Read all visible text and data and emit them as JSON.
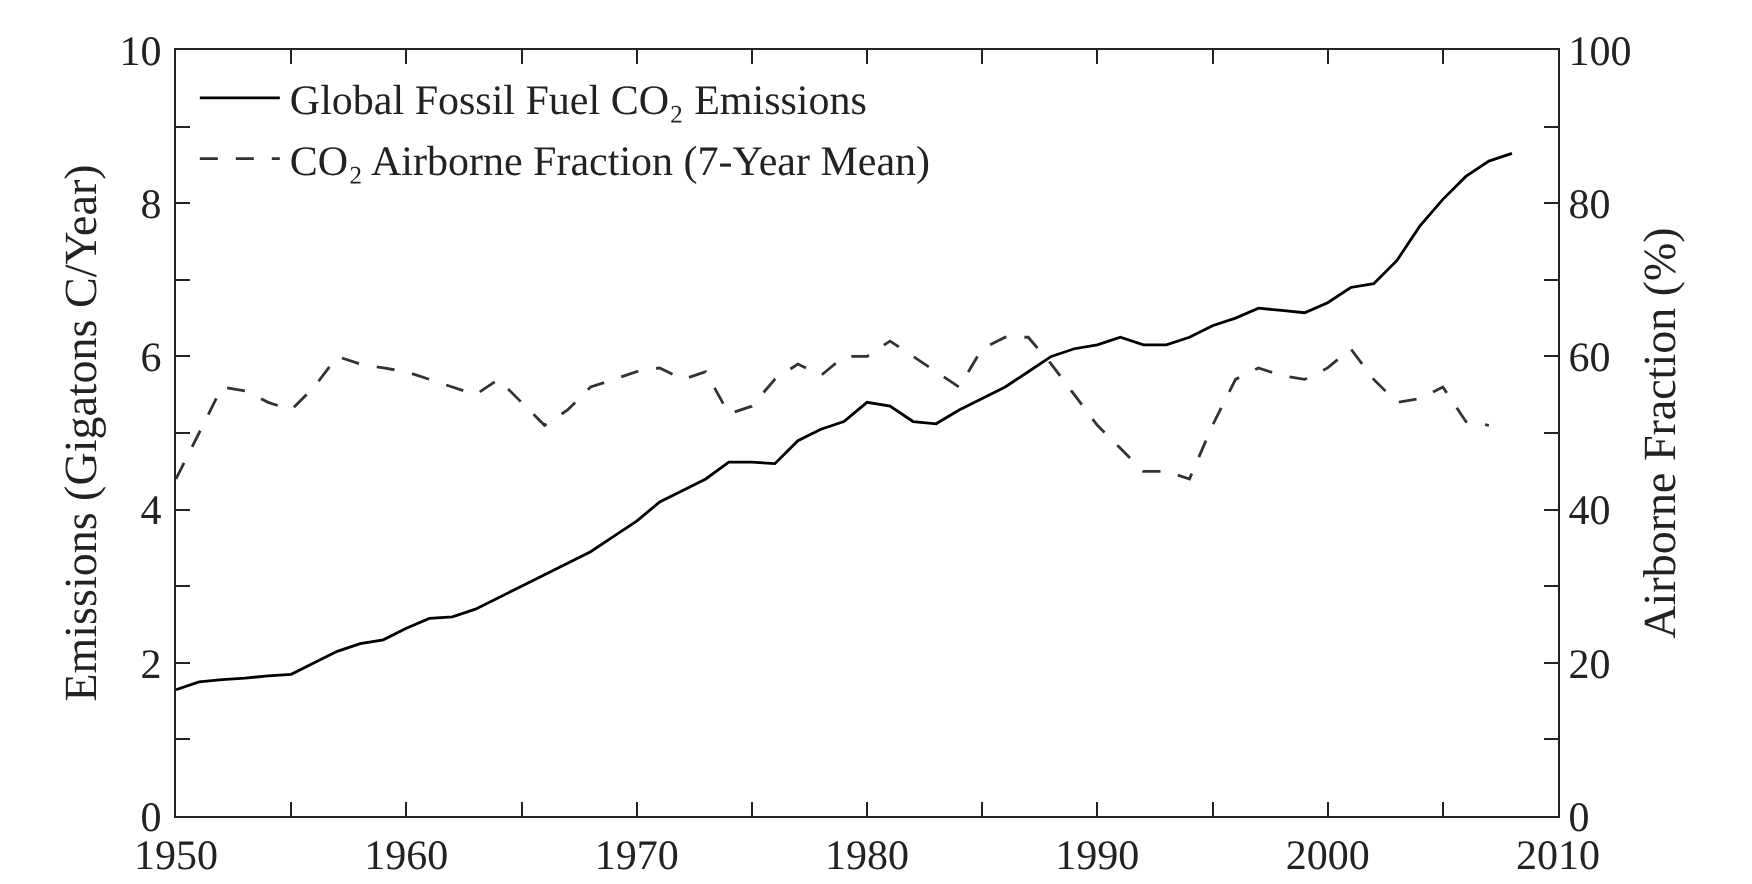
{
  "chart_data": {
    "type": "line",
    "ylabel": "Emissions (Gigatons C/Year)",
    "y2label": "Airborne Fraction (%)",
    "xlim": [
      1950,
      2010
    ],
    "xticks": [
      1950,
      {
        "value": 1955,
        "label": null
      },
      1960,
      {
        "value": 1965,
        "label": null
      },
      1970,
      {
        "value": 1975,
        "label": null
      },
      1980,
      {
        "value": 1985,
        "label": null
      },
      1990,
      {
        "value": 1995,
        "label": null
      },
      2000,
      {
        "value": 2005,
        "label": null
      },
      2010
    ],
    "ylim": [
      0,
      10
    ],
    "yticks": [
      0,
      {
        "value": 1,
        "label": null
      },
      2,
      {
        "value": 3,
        "label": null
      },
      4,
      {
        "value": 5,
        "label": null
      },
      6,
      {
        "value": 7,
        "label": null
      },
      8,
      {
        "value": 9,
        "label": null
      },
      10
    ],
    "y2lim": [
      0,
      100
    ],
    "y2ticks": [
      0,
      {
        "value": 10,
        "label": null
      },
      20,
      {
        "value": 30,
        "label": null
      },
      40,
      {
        "value": 50,
        "label": null
      },
      60,
      {
        "value": 70,
        "label": null
      },
      80,
      {
        "value": 90,
        "label": null
      },
      100
    ],
    "grid": false,
    "legend": "top left",
    "marker": "none",
    "series": [
      {
        "name": "Global Fossil Fuel CO₂ Emissions",
        "color": "#000000",
        "line_style": "solid",
        "x": [
          1950,
          1951,
          1952,
          1953,
          1954,
          1955,
          1956,
          1957,
          1958,
          1959,
          1960,
          1961,
          1962,
          1963,
          1964,
          1965,
          1966,
          1967,
          1968,
          1969,
          1970,
          1971,
          1972,
          1973,
          1974,
          1975,
          1976,
          1977,
          1978,
          1979,
          1980,
          1981,
          1982,
          1983,
          1984,
          1985,
          1986,
          1987,
          1988,
          1989,
          1990,
          1991,
          1992,
          1993,
          1994,
          1995,
          1996,
          1997,
          1998,
          1999,
          2000,
          2001,
          2002,
          2003,
          2004,
          2005,
          2006,
          2007,
          2008
        ],
        "values": [
          1.65,
          1.75,
          1.78,
          1.8,
          1.83,
          1.85,
          2.0,
          2.15,
          2.25,
          2.3,
          2.45,
          2.58,
          2.6,
          2.7,
          2.85,
          3.0,
          3.15,
          3.3,
          3.45,
          3.65,
          3.85,
          4.1,
          4.25,
          4.4,
          4.62,
          4.62,
          4.6,
          4.9,
          5.05,
          5.15,
          5.4,
          5.35,
          5.15,
          5.12,
          5.3,
          5.45,
          5.6,
          5.8,
          6.0,
          6.1,
          6.15,
          6.25,
          6.15,
          6.15,
          6.25,
          6.4,
          6.5,
          6.63,
          6.6,
          6.57,
          6.7,
          6.9,
          6.95,
          7.25,
          7.7,
          8.05,
          8.35,
          8.55,
          8.65
        ]
      },
      {
        "name": "CO₂ Airborne Fraction (7-Year Mean)",
        "color": "#333333",
        "line_style": "dashed",
        "axis": "y2",
        "x": [
          1950,
          1951,
          1952,
          1953,
          1954,
          1955,
          1956,
          1957,
          1958,
          1959,
          1960,
          1961,
          1962,
          1963,
          1964,
          1965,
          1966,
          1967,
          1968,
          1969,
          1970,
          1971,
          1972,
          1973,
          1974,
          1975,
          1976,
          1977,
          1978,
          1979,
          1980,
          1981,
          1982,
          1983,
          1984,
          1985,
          1986,
          1987,
          1988,
          1989,
          1990,
          1991,
          1992,
          1993,
          1994,
          1995,
          1996,
          1997,
          1998,
          1999,
          2000,
          2001,
          2002,
          2003,
          2004,
          2005,
          2006,
          2007
        ],
        "values": [
          44,
          50,
          56,
          55.5,
          54,
          53,
          56,
          60,
          59,
          58.5,
          58,
          57,
          56,
          55,
          57,
          54,
          51,
          53,
          56,
          57,
          58,
          58.5,
          57,
          58,
          52.5,
          53.5,
          57,
          59,
          57.5,
          60,
          60,
          62,
          60,
          58,
          56,
          61,
          62.5,
          62.5,
          59,
          55,
          51,
          48,
          45,
          45,
          44,
          51,
          57,
          58.5,
          57.5,
          57,
          58.5,
          61,
          57,
          54,
          54.5,
          56,
          51.5,
          51
        ]
      }
    ]
  }
}
